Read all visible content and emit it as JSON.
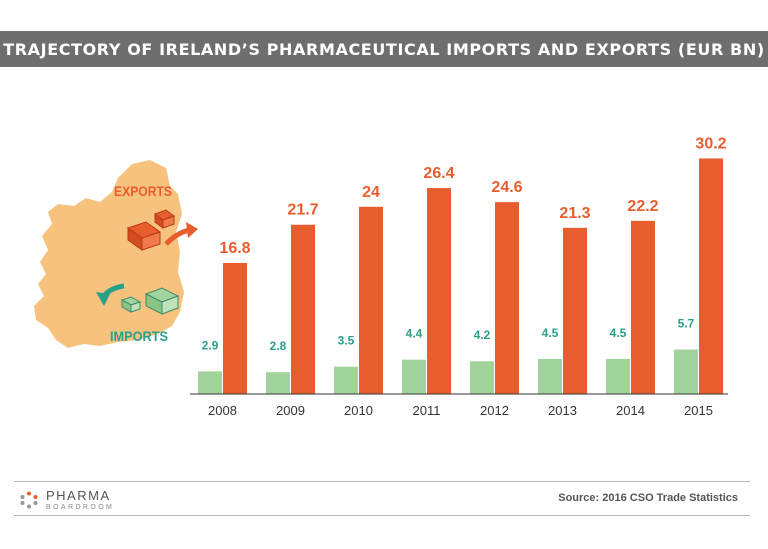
{
  "title": "TRAJECTORY OF IRELAND’S PHARMACEUTICAL IMPORTS AND EXPORTS (EUR BN)",
  "colors": {
    "exports": "#e85d2e",
    "imports": "#a3d39c",
    "imports_label": "#2aa08a",
    "map": "#f7c27e",
    "title_bar": "#6e6e6e"
  },
  "legend": {
    "exports": "EXPORTS",
    "imports": "IMPORTS"
  },
  "chart_data": {
    "type": "bar",
    "categories": [
      "2008",
      "2009",
      "2010",
      "2011",
      "2012",
      "2013",
      "2014",
      "2015"
    ],
    "series": [
      {
        "name": "IMPORTS",
        "values": [
          2.9,
          2.8,
          3.5,
          4.4,
          4.2,
          4.5,
          4.5,
          5.7
        ]
      },
      {
        "name": "EXPORTS",
        "values": [
          16.8,
          21.7,
          24,
          26.4,
          24.6,
          21.3,
          22.2,
          30.2
        ]
      }
    ],
    "ylim": [
      0,
      35
    ],
    "grid": false,
    "legend": "left"
  },
  "footer": {
    "brand_main": "PHARMA",
    "brand_sub": "BOARDROOM",
    "source": "Source: 2016 CSO Trade Statistics"
  }
}
